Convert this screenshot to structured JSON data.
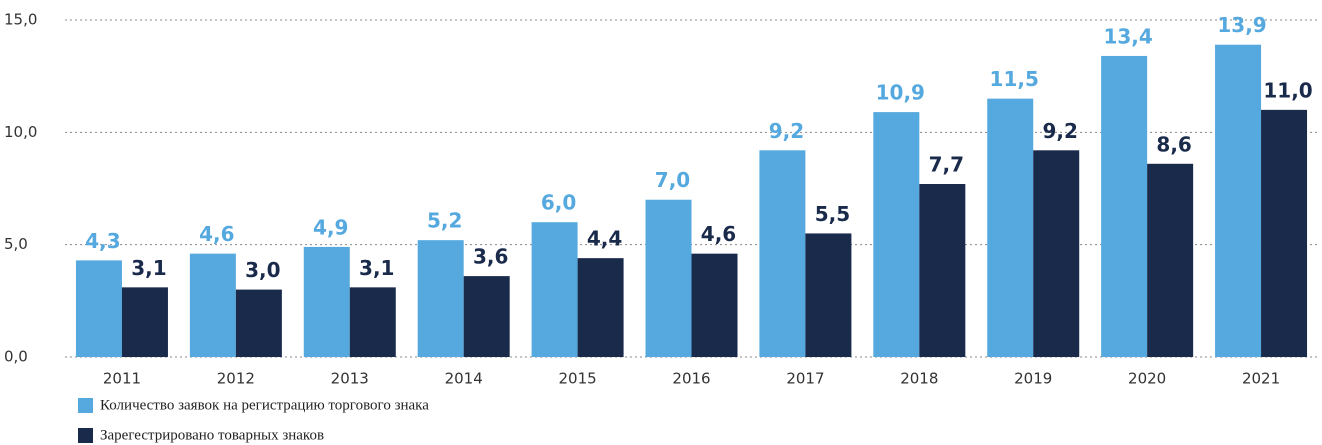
{
  "chart_data": {
    "type": "bar",
    "categories": [
      "2011",
      "2012",
      "2013",
      "2014",
      "2015",
      "2016",
      "2017",
      "2018",
      "2019",
      "2020",
      "2021"
    ],
    "series": [
      {
        "name": "Количество заявок на регистрацию торгового знака",
        "color": "#55a9df",
        "values": [
          4.3,
          4.6,
          4.9,
          5.2,
          6.0,
          7.0,
          9.2,
          10.9,
          11.5,
          13.4,
          13.9
        ],
        "value_labels": [
          "4,3",
          "4,6",
          "4,9",
          "5,2",
          "6,0",
          "7,0",
          "9,2",
          "10,9",
          "11,5",
          "13,4",
          "13,9"
        ]
      },
      {
        "name": "Зарегестрировано товарных знаков",
        "color": "#1a2a4b",
        "values": [
          3.1,
          3.0,
          3.1,
          3.6,
          4.4,
          4.6,
          5.5,
          7.7,
          9.2,
          8.6,
          11.0
        ],
        "value_labels": [
          "3,1",
          "3,0",
          "3,1",
          "3,6",
          "4,4",
          "4,6",
          "5,5",
          "7,7",
          "9,2",
          "8,6",
          "11,0"
        ]
      }
    ],
    "ylim": [
      0,
      15
    ],
    "yticks": [
      {
        "value": 0,
        "label": "0,0"
      },
      {
        "value": 5,
        "label": "5,0"
      },
      {
        "value": 10,
        "label": "10,0"
      },
      {
        "value": 15,
        "label": "15,0"
      }
    ],
    "grid": true,
    "legend": "bottom-left"
  }
}
